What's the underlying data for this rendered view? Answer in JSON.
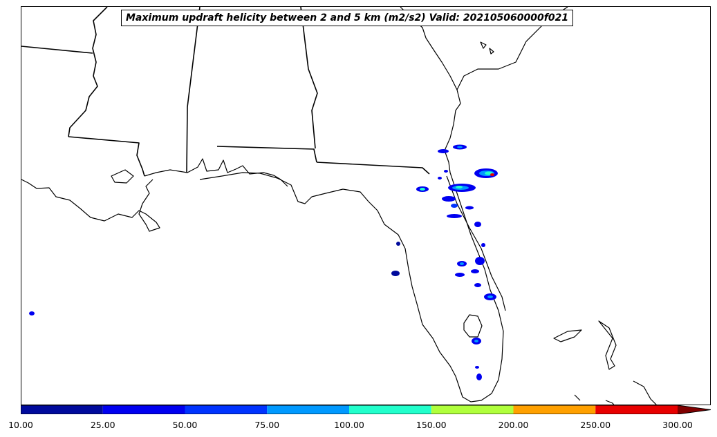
{
  "map": {
    "title": "Maximum updraft helicity between 2 and 5 km (m2/s2) Valid: 202105060000f021"
  },
  "colorbar": {
    "levels": [
      "10.00",
      "25.00",
      "50.00",
      "75.00",
      "100.00",
      "150.00",
      "200.00",
      "250.00",
      "300.00"
    ],
    "colors": [
      "#000a9c",
      "#0000f0",
      "#0033ff",
      "#0099ff",
      "#22ffcc",
      "#b0ff3c",
      "#ffa000",
      "#e80000"
    ],
    "extend_color": "#800000"
  }
}
